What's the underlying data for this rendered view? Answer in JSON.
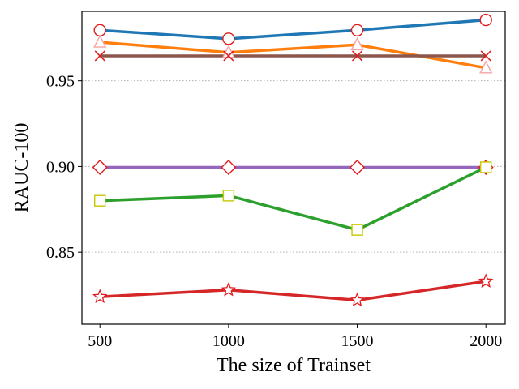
{
  "chart_data": {
    "type": "line",
    "title": "",
    "xlabel": "The size of Trainset",
    "ylabel": "RAUC-100",
    "x": [
      500,
      1000,
      1500,
      2000
    ],
    "xticks": [
      "500",
      "1000",
      "1500",
      "2000"
    ],
    "yticks": [
      "0.85",
      "0.90",
      "0.95"
    ],
    "ytick_values": [
      0.85,
      0.9,
      0.95
    ],
    "xlim": [
      430,
      2075
    ],
    "ylim": [
      0.808,
      0.9905
    ],
    "grid": "horizontal dotted",
    "legend": "none",
    "series": [
      {
        "name": "blue-circle",
        "color": "#1f77b4",
        "marker": "circle",
        "values": [
          0.9795,
          0.9745,
          0.9795,
          0.9855
        ]
      },
      {
        "name": "orange-triangle",
        "color": "#ff7f0e",
        "marker": "triangle",
        "values": [
          0.9725,
          0.9665,
          0.971,
          0.9575
        ]
      },
      {
        "name": "brown-x",
        "color": "#8c564b",
        "marker": "x",
        "values": [
          0.9645,
          0.9645,
          0.9645,
          0.9645
        ]
      },
      {
        "name": "purple-diamond",
        "color": "#9467bd",
        "marker": "diamond",
        "values": [
          0.8995,
          0.8995,
          0.8995,
          0.8995
        ]
      },
      {
        "name": "green-square",
        "color": "#2ca02c",
        "marker": "square",
        "values": [
          0.88,
          0.883,
          0.863,
          0.8995
        ]
      },
      {
        "name": "red-star",
        "color": "#d62728",
        "marker": "star",
        "values": [
          0.824,
          0.828,
          0.822,
          0.833
        ]
      }
    ]
  }
}
